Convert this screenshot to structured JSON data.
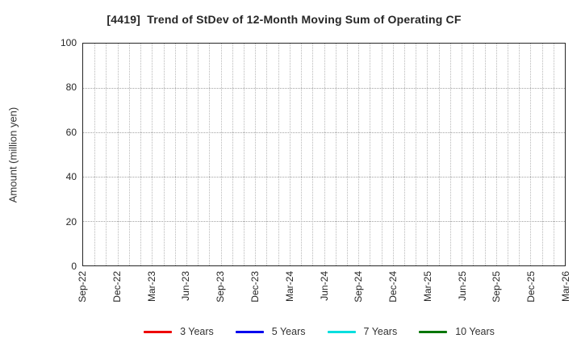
{
  "chart_data": {
    "type": "line",
    "title": "[4419]  Trend of StDev of 12-Month Moving Sum of Operating CF",
    "xlabel": "",
    "ylabel": "Amount (million yen)",
    "ylim": [
      0,
      100
    ],
    "yticks": [
      0,
      20,
      40,
      60,
      80,
      100
    ],
    "xticklabels": [
      "Sep-22",
      "Dec-22",
      "Mar-23",
      "Jun-23",
      "Sep-23",
      "Dec-23",
      "Mar-24",
      "Jun-24",
      "Sep-24",
      "Dec-24",
      "Mar-25",
      "Jun-25",
      "Sep-25",
      "Dec-25",
      "Mar-26"
    ],
    "minor_vertical_gridlines_per_interval": 3,
    "grid": true,
    "plot_is_empty": true,
    "legend_position": "bottom",
    "series": [
      {
        "name": "3 Years",
        "color": "#ee0000",
        "values": []
      },
      {
        "name": "5 Years",
        "color": "#0000ee",
        "values": []
      },
      {
        "name": "7 Years",
        "color": "#00dede",
        "values": []
      },
      {
        "name": "10 Years",
        "color": "#097609",
        "values": []
      }
    ]
  },
  "colors": {
    "axis_border": "#262626",
    "grid_vertical": "#b9b9b9",
    "grid_horizontal": "#a3a3a3",
    "text": "#262626",
    "background": "#ffffff"
  }
}
